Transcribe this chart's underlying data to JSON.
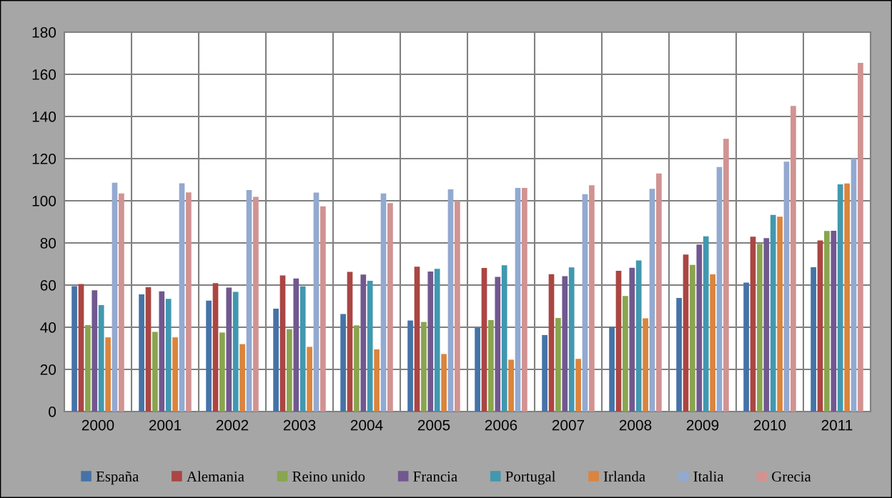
{
  "chart_data": {
    "type": "bar",
    "categories": [
      "2000",
      "2001",
      "2002",
      "2003",
      "2004",
      "2005",
      "2006",
      "2007",
      "2008",
      "2009",
      "2010",
      "2011"
    ],
    "series": [
      {
        "name": "España",
        "color": "#4573a7",
        "values": [
          59.5,
          55.6,
          52.6,
          48.8,
          46.3,
          43.2,
          39.7,
          36.3,
          40.2,
          53.9,
          61.2,
          68.5
        ]
      },
      {
        "name": "Alemania",
        "color": "#aa4643",
        "values": [
          60.5,
          59,
          60.9,
          64.6,
          66.3,
          68.7,
          68.1,
          65.2,
          66.8,
          74.5,
          83,
          81.2
        ]
      },
      {
        "name": "Reino unido",
        "color": "#89a54e",
        "values": [
          41,
          37.8,
          37.5,
          39.1,
          40.9,
          42.5,
          43.4,
          44.4,
          54.8,
          69.6,
          79.6,
          85.7
        ]
      },
      {
        "name": "Francia",
        "color": "#71588f",
        "values": [
          57.5,
          57,
          58.8,
          63.1,
          65,
          66.4,
          63.9,
          64.2,
          68.2,
          79.2,
          82.3,
          85.8
        ]
      },
      {
        "name": "Portugal",
        "color": "#4198af",
        "values": [
          50.5,
          53.5,
          56.8,
          59.4,
          62,
          67.7,
          69.4,
          68.4,
          71.7,
          83.1,
          93.3,
          107.8
        ]
      },
      {
        "name": "Irlanda",
        "color": "#db843d",
        "values": [
          35.2,
          35.2,
          32,
          30.7,
          29.5,
          27.3,
          24.6,
          25,
          44.2,
          65.1,
          92.5,
          108.2
        ]
      },
      {
        "name": "Italia",
        "color": "#93a9cf",
        "values": [
          108.6,
          108.3,
          105.1,
          103.9,
          103.5,
          105.4,
          106.1,
          103.1,
          105.7,
          116,
          118.6,
          120.1
        ]
      },
      {
        "name": "Grecia",
        "color": "#d19392",
        "values": [
          103.5,
          104,
          101.9,
          97.4,
          98.9,
          100,
          106.1,
          107.4,
          113,
          129.4,
          145,
          165.4
        ]
      }
    ],
    "ylim": [
      0,
      180
    ],
    "yticks": [
      0,
      20,
      40,
      60,
      80,
      100,
      120,
      140,
      160,
      180
    ],
    "grid": true,
    "legend": "bottom"
  }
}
